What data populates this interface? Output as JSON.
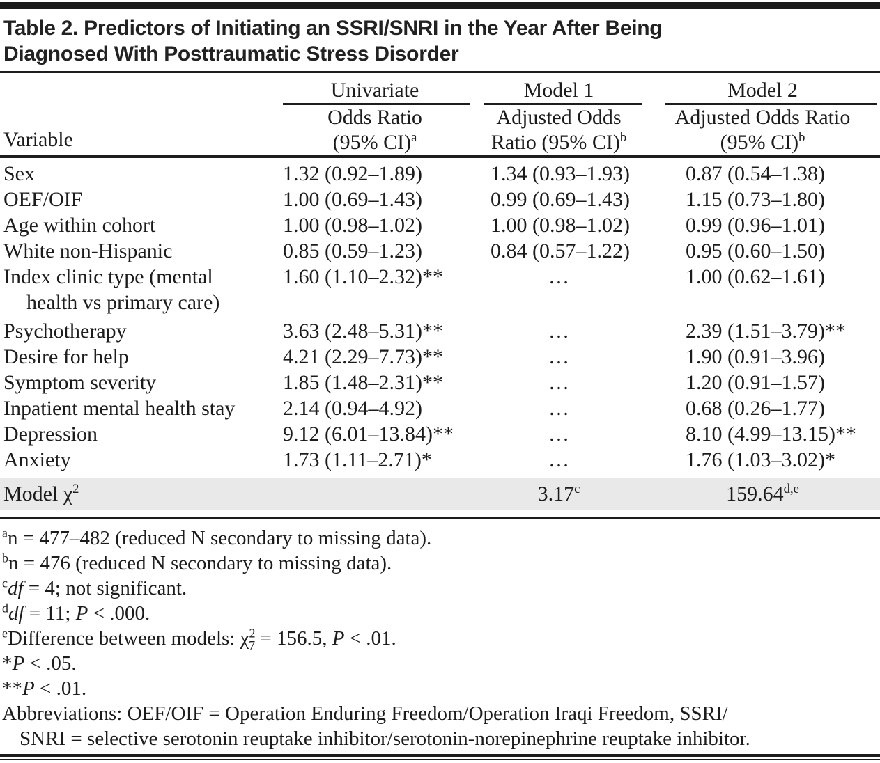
{
  "table": {
    "title_line1": "Table 2. Predictors of Initiating an SSRI/SNRI in the Year After Being",
    "title_line2": "Diagnosed With Posttraumatic Stress Disorder",
    "columns": {
      "variable_header": "Variable",
      "groups": [
        {
          "label": "Univariate",
          "sub_line1": "Odds Ratio",
          "sub_line2": [
            {
              "t": "(95% CI)"
            },
            {
              "t": "a",
              "s": "sup"
            }
          ]
        },
        {
          "label": "Model 1",
          "sub_line1": "Adjusted Odds",
          "sub_line2": [
            {
              "t": "Ratio (95% CI)"
            },
            {
              "t": "b",
              "s": "sup"
            }
          ]
        },
        {
          "label": "Model 2",
          "sub_line1": "Adjusted Odds Ratio",
          "sub_line2": [
            {
              "t": "(95% CI)"
            },
            {
              "t": "b",
              "s": "sup"
            }
          ]
        }
      ]
    },
    "rows": [
      {
        "label": "Sex",
        "univariate": "1.32 (0.92–1.89)",
        "model1": "1.34 (0.93–1.93)",
        "model2": "0.87 (0.54–1.38)"
      },
      {
        "label": "OEF/OIF",
        "univariate": "1.00 (0.69–1.43)",
        "model1": "0.99 (0.69–1.43)",
        "model2": "1.15 (0.73–1.80)"
      },
      {
        "label": "Age within cohort",
        "univariate": "1.00 (0.98–1.02)",
        "model1": "1.00 (0.98–1.02)",
        "model2": "0.99 (0.96–1.01)"
      },
      {
        "label": "White non-Hispanic",
        "univariate": "0.85 (0.59–1.23)",
        "model1": "0.84 (0.57–1.22)",
        "model2": "0.95 (0.60–1.50)"
      },
      {
        "label": "Index clinic type (mental",
        "label2": "health vs primary care)",
        "univariate": "1.60 (1.10–2.32)**",
        "model1": "…",
        "model2": "1.00 (0.62–1.61)"
      },
      {
        "label": "Psychotherapy",
        "univariate": "3.63 (2.48–5.31)**",
        "model1": "…",
        "model2": "2.39 (1.51–3.79)**"
      },
      {
        "label": "Desire for help",
        "univariate": "4.21 (2.29–7.73)**",
        "model1": "…",
        "model2": "1.90 (0.91–3.96)"
      },
      {
        "label": "Symptom severity",
        "univariate": "1.85 (1.48–2.31)**",
        "model1": "…",
        "model2": "1.20 (0.91–1.57)"
      },
      {
        "label": "Inpatient mental health stay",
        "univariate": "2.14 (0.94–4.92)",
        "model1": "…",
        "model2": "0.68 (0.26–1.77)"
      },
      {
        "label": "Depression",
        "univariate": "9.12 (6.01–13.84)**",
        "model1": "…",
        "model2": "8.10 (4.99–13.15)**"
      },
      {
        "label": "Anxiety",
        "univariate": "1.73 (1.11–2.71)*",
        "model1": "…",
        "model2": "1.76 (1.03–3.02)*"
      }
    ],
    "chi_row": {
      "label": [
        {
          "t": "Model χ"
        },
        {
          "t": "2",
          "s": "sup"
        }
      ],
      "model1": [
        {
          "t": "3.17"
        },
        {
          "t": "c",
          "s": "sup"
        }
      ],
      "model2": [
        {
          "t": "159.64"
        },
        {
          "t": "d,e",
          "s": "sup"
        }
      ]
    },
    "footnotes": [
      [
        {
          "t": "a",
          "s": "sup"
        },
        {
          "t": "n = 477–482 (reduced N secondary to missing data)."
        }
      ],
      [
        {
          "t": "b",
          "s": "sup"
        },
        {
          "t": "n = 476 (reduced N secondary to missing data)."
        }
      ],
      [
        {
          "t": "c",
          "s": "sup"
        },
        {
          "t": "df",
          "s": "i"
        },
        {
          "t": " = 4; not significant."
        }
      ],
      [
        {
          "t": "d",
          "s": "sup"
        },
        {
          "t": "df",
          "s": "i"
        },
        {
          "t": " = 11; "
        },
        {
          "t": "P",
          "s": "i"
        },
        {
          "t": " < .000."
        }
      ],
      [
        {
          "t": "e",
          "s": "sup"
        },
        {
          "t": "Difference between models: χ"
        },
        {
          "t": "2",
          "s": "sup"
        },
        {
          "t": "7",
          "s": "sub"
        },
        {
          "t": " = 156.5, "
        },
        {
          "t": "P",
          "s": "i"
        },
        {
          "t": " < .01."
        }
      ],
      [
        {
          "t": "*"
        },
        {
          "t": "P",
          "s": "i"
        },
        {
          "t": " < .05."
        }
      ],
      [
        {
          "t": "**"
        },
        {
          "t": "P",
          "s": "i"
        },
        {
          "t": " < .01."
        }
      ],
      [
        {
          "t": "Abbreviations: OEF/OIF = Operation Enduring Freedom/Operation Iraqi Freedom, SSRI/"
        }
      ],
      [
        {
          "t": "SNRI = selective serotonin reuptake inhibitor/serotonin-norepinephrine reuptake inhibitor."
        }
      ]
    ],
    "colors": {
      "rule": "#1d1d1d",
      "shaded_row": "#e9e9e9",
      "text": "#1c1c1c"
    }
  }
}
